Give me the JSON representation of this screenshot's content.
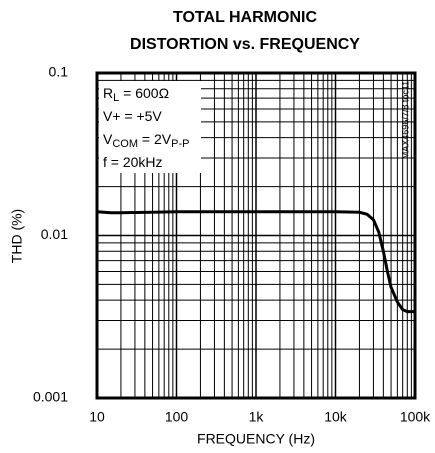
{
  "chart_data": {
    "type": "line",
    "title": [
      "TOTAL HARMONIC",
      "DISTORTION vs. FREQUENCY"
    ],
    "xlabel": "FREQUENCY (Hz)",
    "ylabel": "THD (%)",
    "side_note": "MAX4696/7/8 toc11",
    "annotations": [
      [
        {
          "text": "R"
        },
        {
          "text": "L",
          "sub": true
        },
        {
          "text": " = 600Ω"
        }
      ],
      [
        {
          "text": "V+ = +5V"
        }
      ],
      [
        {
          "text": "V"
        },
        {
          "text": "COM",
          "sub": true
        },
        {
          "text": " = 2V"
        },
        {
          "text": "P-P",
          "sub": true
        }
      ],
      [
        {
          "text": "f = 20kHz"
        }
      ]
    ],
    "xscale": "log",
    "yscale": "log",
    "grid": true,
    "xlim": [
      10,
      100000
    ],
    "ylim": [
      0.001,
      0.1
    ],
    "xticks": [
      10,
      100,
      {
        "value": 1000,
        "label": "1k"
      },
      {
        "value": 10000,
        "label": "10k"
      },
      {
        "value": 100000,
        "label": "100k"
      }
    ],
    "yticks": [
      0.001,
      0.01,
      0.1
    ],
    "series": [
      {
        "color": "#000000",
        "x": [
          10,
          15,
          20,
          50,
          100,
          1000,
          10000,
          20000,
          25000,
          30000,
          35000,
          40000,
          45000,
          50000,
          60000,
          70000,
          80000,
          100000
        ],
        "values": [
          0.014,
          0.0138,
          0.0138,
          0.0139,
          0.014,
          0.014,
          0.014,
          0.0139,
          0.0135,
          0.0125,
          0.0105,
          0.008,
          0.006,
          0.0048,
          0.0039,
          0.0035,
          0.0034,
          0.0034
        ]
      }
    ]
  }
}
